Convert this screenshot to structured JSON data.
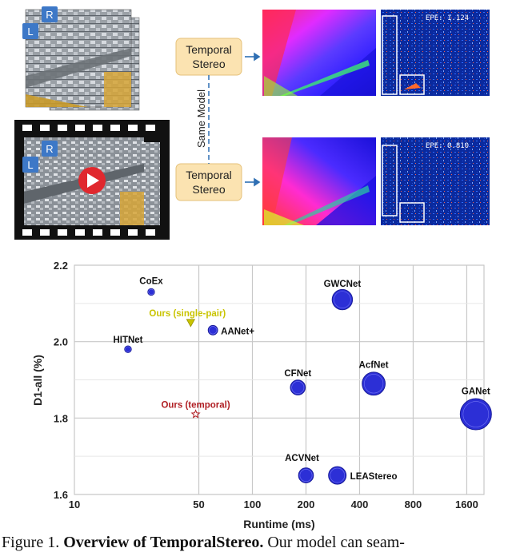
{
  "top": {
    "badges": {
      "right": "R",
      "left": "L"
    },
    "module_label_line1": "Temporal",
    "module_label_line2": "Stereo",
    "same_model": "Same Model",
    "epe_top": "EPE: 1.124",
    "epe_bottom": "EPE: 0.810",
    "colors": {
      "module_fill": "#fbe3b1",
      "module_border": "#e6c27a",
      "arrow": "#2f6fb3",
      "badge": "#3d78c7",
      "play": "#e0282e"
    }
  },
  "chart_data": {
    "type": "scatter",
    "xlabel": "Runtime (ms)",
    "ylabel": "D1-all (%)",
    "xscale": "log2",
    "xlim": [
      10,
      2000
    ],
    "ylim": [
      1.6,
      2.2
    ],
    "xticks": [
      10,
      50,
      100,
      200,
      400,
      800,
      1600
    ],
    "xtick_labels": [
      "10",
      "50",
      "100",
      "200",
      "400",
      "800",
      "1600"
    ],
    "yticks": [
      1.6,
      1.8,
      2.0,
      2.2
    ],
    "ytick_labels": [
      "1.6",
      "1.8",
      "2.0",
      "2.2"
    ],
    "grid": true,
    "points": [
      {
        "name": "CoEx",
        "x": 27,
        "y": 2.13,
        "size": 1
      },
      {
        "name": "HITNet",
        "x": 20,
        "y": 1.98,
        "size": 1
      },
      {
        "name": "AANet+",
        "x": 60,
        "y": 2.03,
        "size": 2
      },
      {
        "name": "GWCNet",
        "x": 320,
        "y": 2.11,
        "size": 6
      },
      {
        "name": "CFNet",
        "x": 180,
        "y": 1.88,
        "size": 4
      },
      {
        "name": "AcfNet",
        "x": 480,
        "y": 1.89,
        "size": 7
      },
      {
        "name": "GANet",
        "x": 1800,
        "y": 1.81,
        "size": 10
      },
      {
        "name": "ACVNet",
        "x": 200,
        "y": 1.65,
        "size": 4
      },
      {
        "name": "LEAStereo",
        "x": 300,
        "y": 1.65,
        "size": 5
      },
      {
        "name": "Ours (single-pair)",
        "x": 45,
        "y": 2.05,
        "marker": "triangle",
        "color": "#c9c400"
      },
      {
        "name": "Ours (temporal)",
        "x": 48,
        "y": 1.81,
        "marker": "star",
        "color": "#b01f24"
      }
    ],
    "colors": {
      "bubble": "#2c2fd6",
      "bubble_edge": "#1a1d9a"
    }
  },
  "caption": {
    "prefix": "Figure 1.",
    "title": "Overview of TemporalStereo.",
    "rest": "Our model can seam-"
  }
}
